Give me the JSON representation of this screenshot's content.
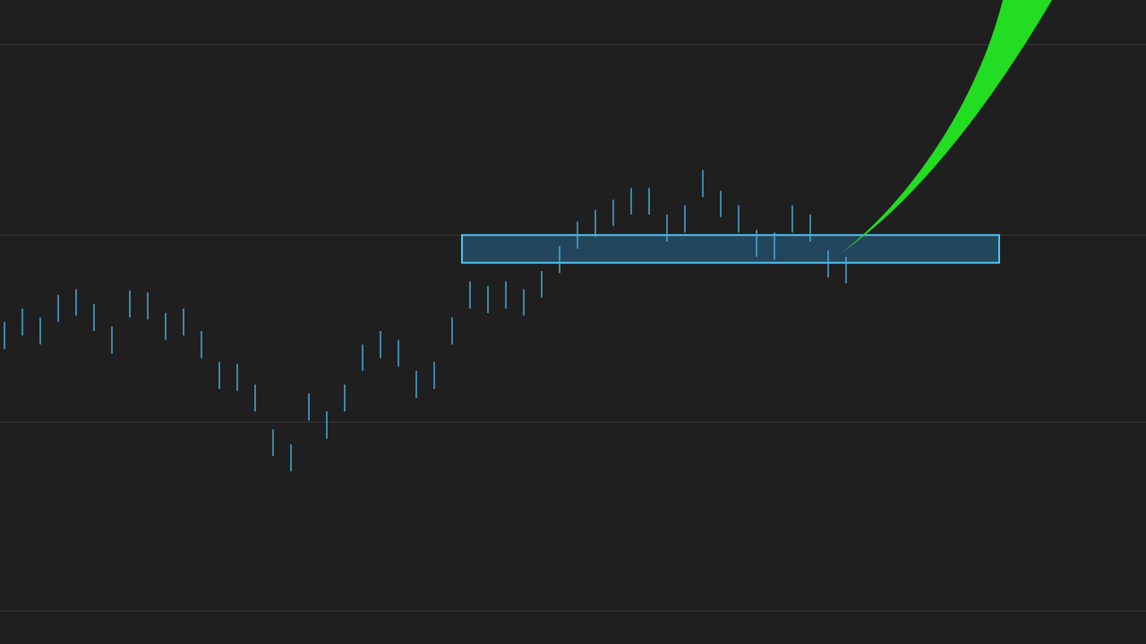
{
  "chart_data": {
    "type": "range-bar",
    "high": [
      50.0,
      52.1,
      50.7,
      54.2,
      55.1,
      52.8,
      49.3,
      54.9,
      54.6,
      51.4,
      52.1,
      48.6,
      43.8,
      43.5,
      40.3,
      33.3,
      31.0,
      38.9,
      36.1,
      40.3,
      46.5,
      48.6,
      47.2,
      42.4,
      43.8,
      50.7,
      56.3,
      55.6,
      56.3,
      55.1,
      57.9,
      61.8,
      65.6,
      67.4,
      69.0,
      70.8,
      70.8,
      66.7,
      68.1,
      73.6,
      70.4,
      68.1,
      64.3,
      63.9,
      68.1,
      66.7,
      61.1,
      60.1
    ],
    "low": [
      45.8,
      47.9,
      46.5,
      50.0,
      51.0,
      48.6,
      45.1,
      50.7,
      50.4,
      47.2,
      47.9,
      44.4,
      39.6,
      39.3,
      36.1,
      29.2,
      26.8,
      34.7,
      31.9,
      36.1,
      42.4,
      44.4,
      43.1,
      38.2,
      39.6,
      46.5,
      52.1,
      51.4,
      52.1,
      51.0,
      53.8,
      57.6,
      61.4,
      63.2,
      64.9,
      66.7,
      66.7,
      62.5,
      63.9,
      69.4,
      66.3,
      63.9,
      60.1,
      59.7,
      63.9,
      62.5,
      56.9,
      56.0
    ],
    "color": "#4aa8d8",
    "zone": [
      59.2,
      63.5
    ],
    "zone_color": "#2f8fd0",
    "ylim": [
      0,
      100
    ]
  }
}
